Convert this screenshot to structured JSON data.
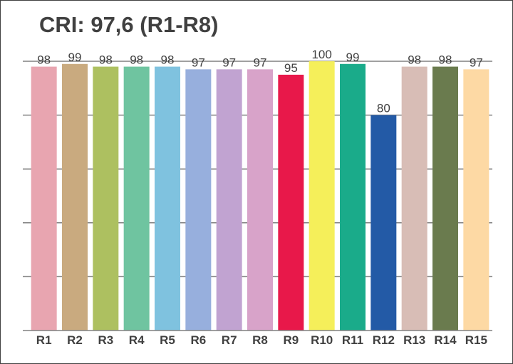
{
  "chart_data": {
    "type": "bar",
    "title": "CRI: 97,6 (R1-R8)",
    "xlabel": "",
    "ylabel": "",
    "ylim": [
      0,
      100
    ],
    "grid": true,
    "categories": [
      "R1",
      "R2",
      "R3",
      "R4",
      "R5",
      "R6",
      "R7",
      "R8",
      "R9",
      "R10",
      "R11",
      "R12",
      "R13",
      "R14",
      "R15"
    ],
    "values": [
      98,
      99,
      98,
      98,
      98,
      97,
      97,
      97,
      95,
      100,
      99,
      80,
      98,
      98,
      97
    ],
    "colors": [
      "#e8a5b0",
      "#c9aa7f",
      "#adc060",
      "#6fc4a0",
      "#7fc2df",
      "#97afdd",
      "#c1a3d1",
      "#d8a3c9",
      "#e8184a",
      "#f5ef5a",
      "#1aab8a",
      "#235aa6",
      "#d8bdb6",
      "#6a7b4e",
      "#fdd9a4"
    ],
    "axis_color": "#808080",
    "text_color": "#404040"
  }
}
